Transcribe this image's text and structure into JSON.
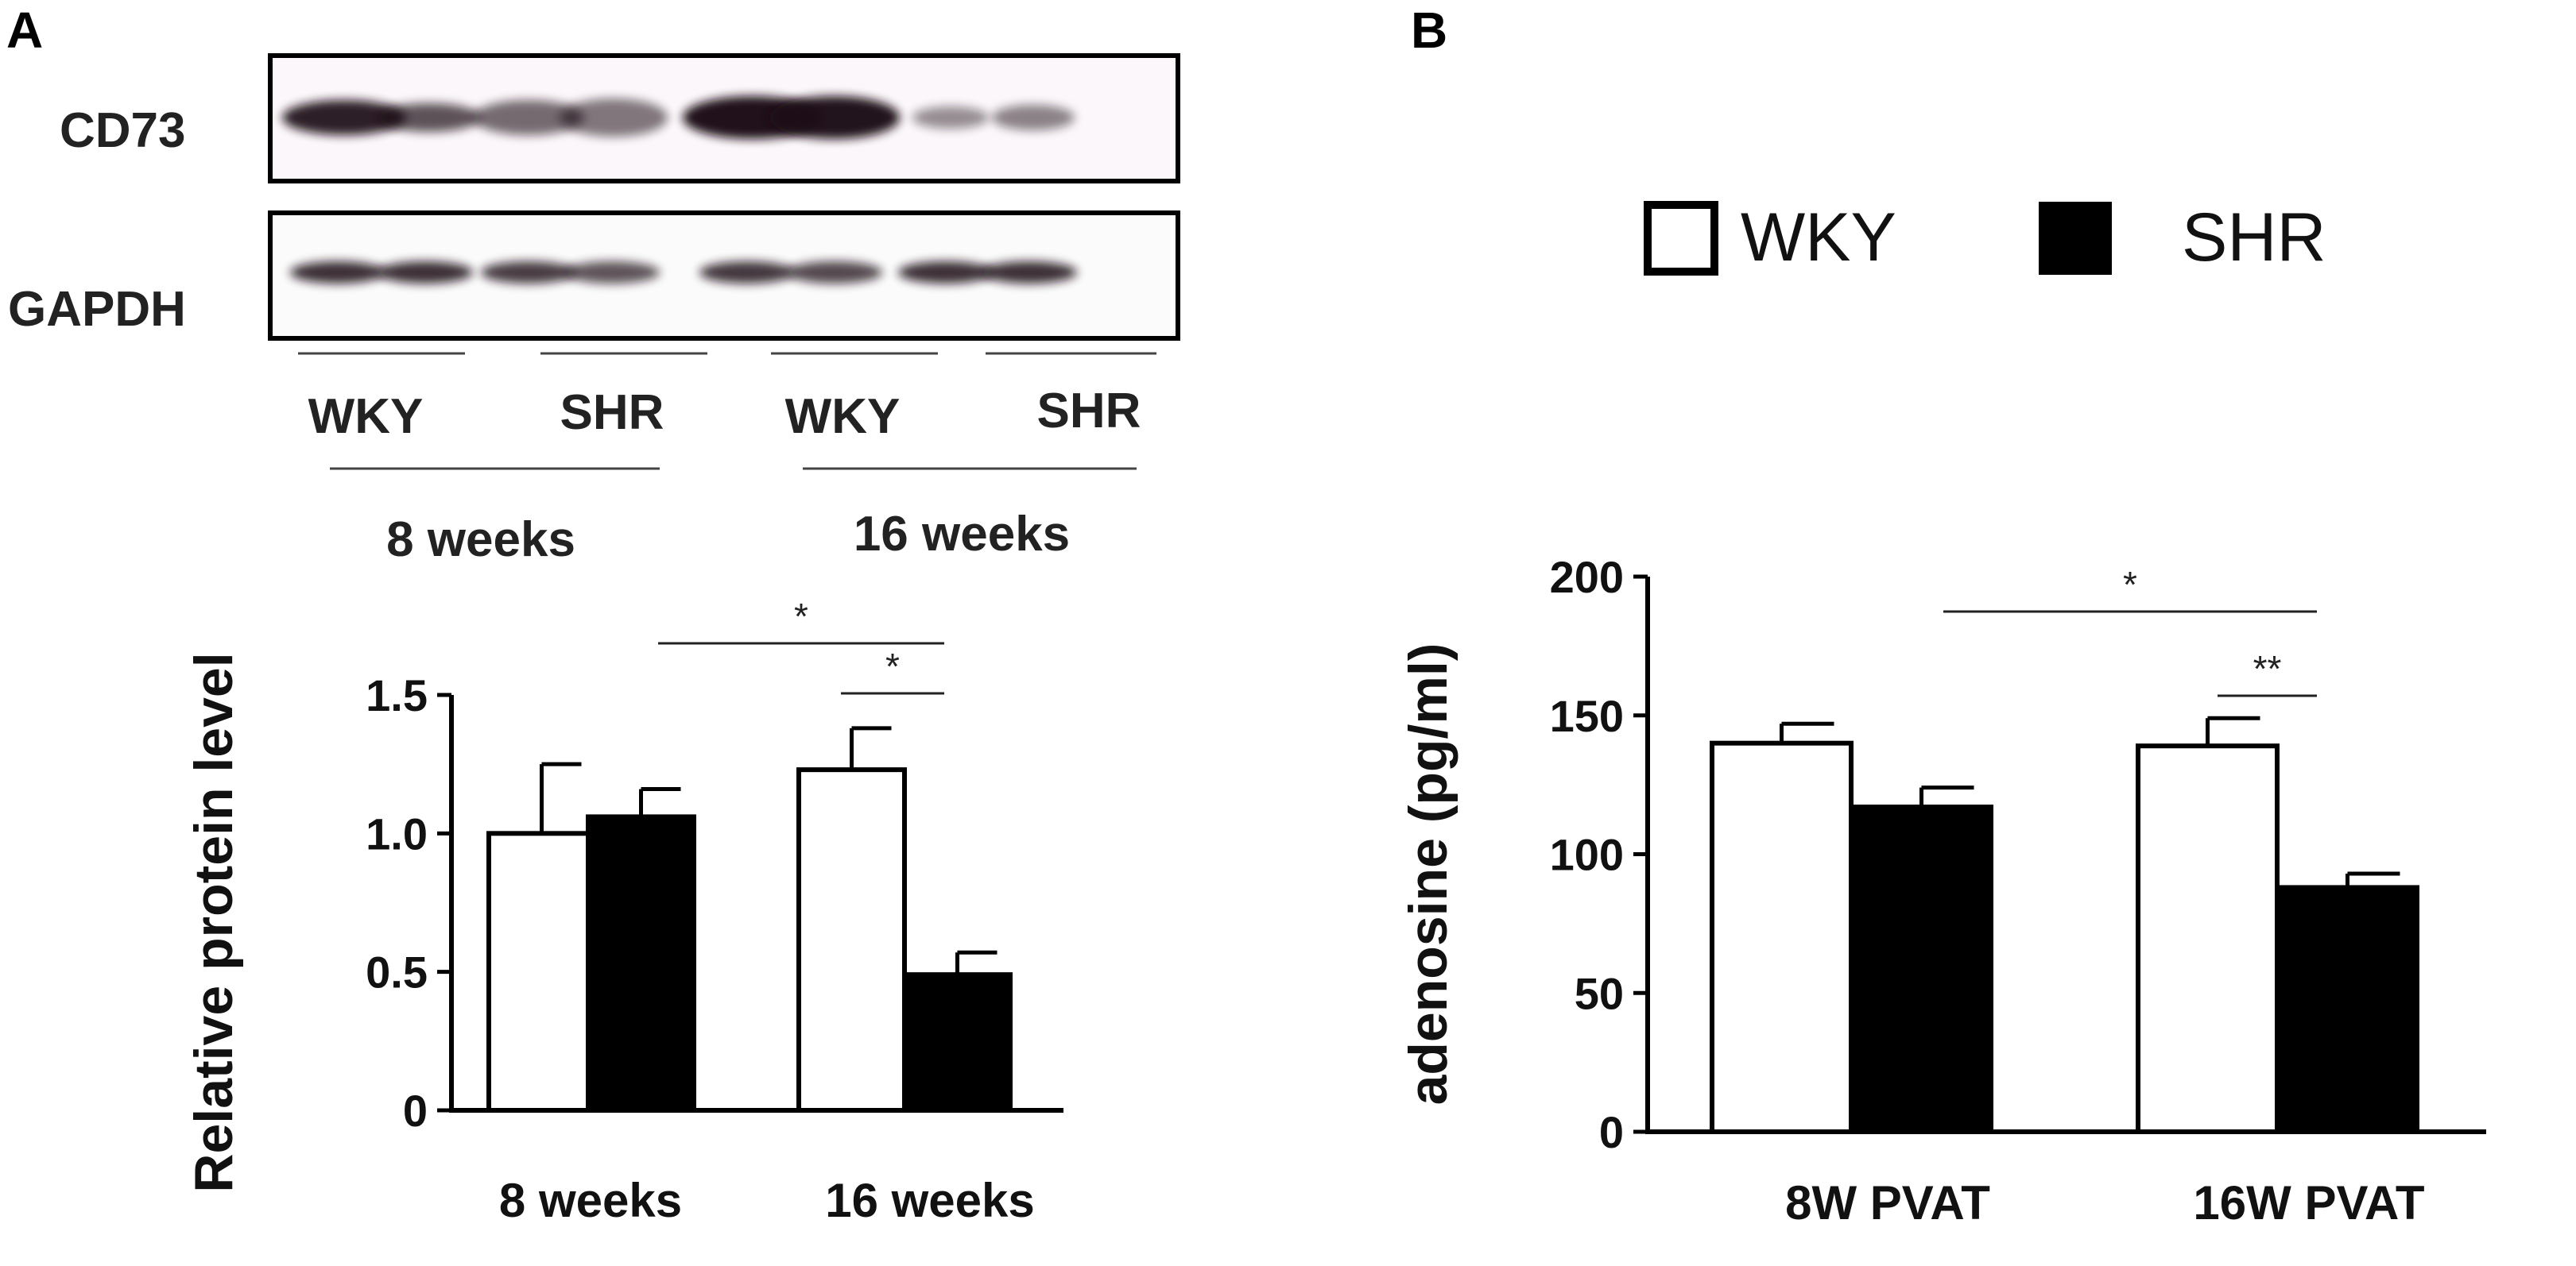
{
  "panel_a": {
    "letter": "A",
    "blot": {
      "rows": [
        "CD73",
        "GAPDH"
      ],
      "lane_labels": [
        "WKY",
        "SHR",
        "WKY",
        "SHR"
      ],
      "age_labels": [
        "8 weeks",
        "16 weeks"
      ]
    }
  },
  "panel_b": {
    "letter": "B",
    "legend": [
      "WKY",
      "SHR"
    ]
  },
  "colors": {
    "wky": "#ffffff",
    "shr": "#000000",
    "band": "#1a0d14"
  },
  "chart_data": [
    {
      "type": "bar",
      "panel": "A",
      "categories": [
        "8 weeks",
        "16 weeks"
      ],
      "series": [
        {
          "name": "WKY",
          "values": [
            1.0,
            1.23
          ],
          "errors": [
            0.25,
            0.15
          ]
        },
        {
          "name": "SHR",
          "values": [
            1.06,
            0.49
          ],
          "errors": [
            0.1,
            0.08
          ]
        }
      ],
      "ylabel": "Relative protein level",
      "yticks": [
        "0",
        "0.5",
        "1.0",
        "1.5"
      ],
      "ylim": [
        0,
        1.5
      ],
      "significance": [
        {
          "label": "*",
          "from": "8 weeks SHR",
          "to": "16 weeks SHR"
        },
        {
          "label": "*",
          "from": "16 weeks WKY",
          "to": "16 weeks SHR"
        }
      ]
    },
    {
      "type": "bar",
      "panel": "B",
      "categories": [
        "8W PVAT",
        "16W PVAT"
      ],
      "series": [
        {
          "name": "WKY",
          "values": [
            140,
            139
          ],
          "errors": [
            7,
            10
          ]
        },
        {
          "name": "SHR",
          "values": [
            117,
            88
          ],
          "errors": [
            7,
            5
          ]
        }
      ],
      "ylabel": "adenosine (pg/ml)",
      "yticks": [
        "0",
        "50",
        "100",
        "150",
        "200"
      ],
      "ylim": [
        0,
        200
      ],
      "legend_position": "top",
      "significance": [
        {
          "label": "*",
          "from": "8W PVAT SHR",
          "to": "16W PVAT SHR"
        },
        {
          "label": "**",
          "from": "16W PVAT WKY",
          "to": "16W PVAT SHR"
        }
      ]
    }
  ]
}
